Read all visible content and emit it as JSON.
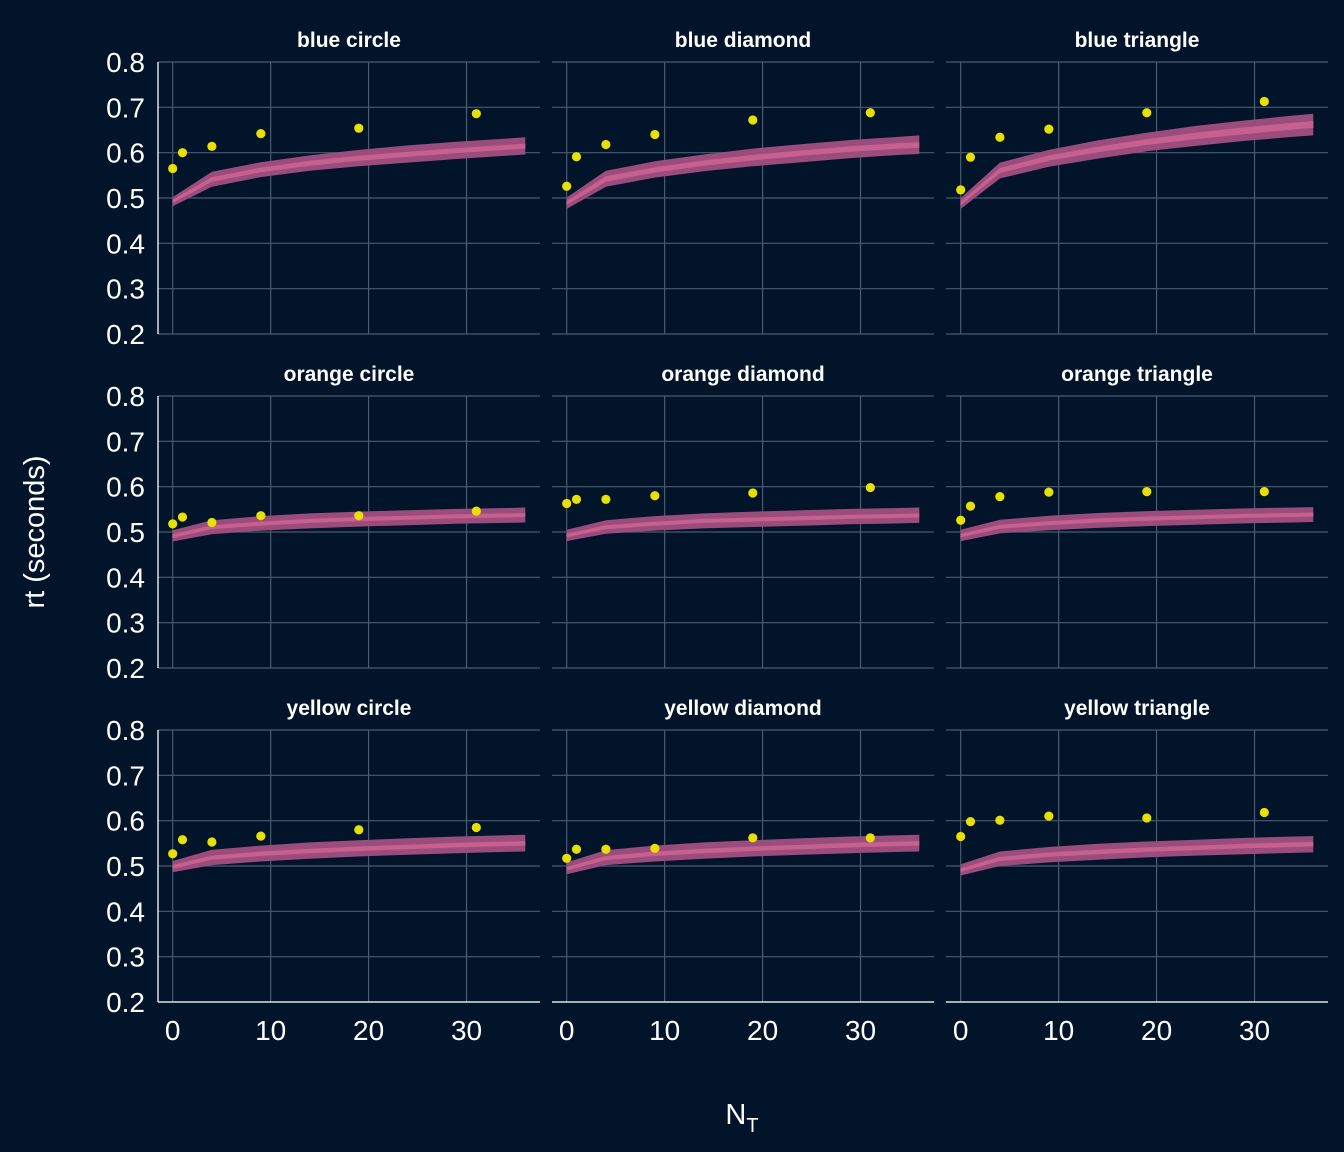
{
  "colors": {
    "background": "#01142a",
    "grid": "#4a5b72",
    "text": "#ffffff",
    "ribbon_outer": "#9a4c7c",
    "ribbon_inner": "#c8608f",
    "point": "#e8e000"
  },
  "chart_data": {
    "type": "scatter",
    "xlabel": "N",
    "xlabel_subscript": "T",
    "ylabel": "rt (seconds)",
    "ylim": [
      0.2,
      0.8
    ],
    "xlim": [
      -1.5,
      37.5
    ],
    "y_ticks": [
      "0.2",
      "0.3",
      "0.4",
      "0.5",
      "0.6",
      "0.7",
      "0.8"
    ],
    "x_ticks": [
      "0",
      "10",
      "20",
      "30"
    ],
    "grid": true,
    "layers": [
      "model prediction ribbon (outer band, inner band)",
      "observed mean rt points"
    ],
    "ribbon_x": [
      0,
      4,
      9,
      14,
      19,
      24,
      29,
      34,
      36
    ],
    "point_x": [
      0,
      1,
      4,
      9,
      19,
      31
    ],
    "facets": [
      {
        "title": "blue circle",
        "points": [
          0.565,
          0.6,
          0.614,
          0.642,
          0.654,
          0.686
        ],
        "ribbon_outer_lo": [
          0.482,
          0.525,
          0.546,
          0.56,
          0.57,
          0.578,
          0.586,
          0.593,
          0.596
        ],
        "ribbon_outer_hi": [
          0.502,
          0.558,
          0.579,
          0.594,
          0.606,
          0.616,
          0.624,
          0.631,
          0.634
        ],
        "ribbon_inner_lo": [
          0.489,
          0.536,
          0.557,
          0.571,
          0.582,
          0.591,
          0.599,
          0.606,
          0.609
        ],
        "ribbon_inner_hi": [
          0.496,
          0.546,
          0.567,
          0.582,
          0.593,
          0.602,
          0.61,
          0.617,
          0.62
        ]
      },
      {
        "title": "blue diamond",
        "points": [
          0.526,
          0.591,
          0.618,
          0.64,
          0.672,
          0.688
        ],
        "ribbon_outer_lo": [
          0.476,
          0.525,
          0.545,
          0.559,
          0.57,
          0.579,
          0.588,
          0.595,
          0.597
        ],
        "ribbon_outer_hi": [
          0.501,
          0.56,
          0.581,
          0.596,
          0.609,
          0.619,
          0.628,
          0.635,
          0.638
        ],
        "ribbon_inner_lo": [
          0.485,
          0.536,
          0.556,
          0.571,
          0.583,
          0.593,
          0.602,
          0.609,
          0.611
        ],
        "ribbon_inner_hi": [
          0.493,
          0.548,
          0.568,
          0.583,
          0.595,
          0.605,
          0.614,
          0.621,
          0.623
        ]
      },
      {
        "title": "blue triangle",
        "points": [
          0.518,
          0.59,
          0.634,
          0.652,
          0.688,
          0.713
        ],
        "ribbon_outer_lo": [
          0.476,
          0.543,
          0.569,
          0.587,
          0.603,
          0.615,
          0.626,
          0.635,
          0.638
        ],
        "ribbon_outer_hi": [
          0.5,
          0.578,
          0.606,
          0.627,
          0.644,
          0.659,
          0.671,
          0.682,
          0.686
        ],
        "ribbon_inner_lo": [
          0.484,
          0.555,
          0.582,
          0.601,
          0.617,
          0.63,
          0.641,
          0.651,
          0.655
        ],
        "ribbon_inner_hi": [
          0.492,
          0.566,
          0.594,
          0.613,
          0.63,
          0.644,
          0.656,
          0.666,
          0.67
        ]
      },
      {
        "title": "orange circle",
        "points": [
          0.518,
          0.533,
          0.521,
          0.536,
          0.536,
          0.546
        ],
        "ribbon_outer_lo": [
          0.479,
          0.495,
          0.503,
          0.508,
          0.512,
          0.515,
          0.518,
          0.52,
          0.521
        ],
        "ribbon_outer_hi": [
          0.504,
          0.526,
          0.535,
          0.541,
          0.545,
          0.548,
          0.551,
          0.553,
          0.554
        ],
        "ribbon_inner_lo": [
          0.487,
          0.506,
          0.514,
          0.52,
          0.524,
          0.527,
          0.53,
          0.532,
          0.533
        ],
        "ribbon_inner_hi": [
          0.495,
          0.515,
          0.523,
          0.529,
          0.533,
          0.536,
          0.539,
          0.541,
          0.542
        ]
      },
      {
        "title": "orange diamond",
        "points": [
          0.563,
          0.572,
          0.572,
          0.58,
          0.586,
          0.598
        ],
        "ribbon_outer_lo": [
          0.48,
          0.496,
          0.503,
          0.508,
          0.511,
          0.514,
          0.517,
          0.519,
          0.52
        ],
        "ribbon_outer_hi": [
          0.505,
          0.526,
          0.535,
          0.541,
          0.545,
          0.548,
          0.551,
          0.553,
          0.554
        ],
        "ribbon_inner_lo": [
          0.488,
          0.506,
          0.514,
          0.52,
          0.523,
          0.526,
          0.529,
          0.531,
          0.532
        ],
        "ribbon_inner_hi": [
          0.496,
          0.515,
          0.523,
          0.529,
          0.532,
          0.535,
          0.538,
          0.54,
          0.541
        ]
      },
      {
        "title": "orange triangle",
        "points": [
          0.526,
          0.557,
          0.578,
          0.588,
          0.589,
          0.589
        ],
        "ribbon_outer_lo": [
          0.48,
          0.497,
          0.504,
          0.509,
          0.513,
          0.516,
          0.519,
          0.521,
          0.522
        ],
        "ribbon_outer_hi": [
          0.505,
          0.527,
          0.536,
          0.542,
          0.546,
          0.549,
          0.552,
          0.554,
          0.555
        ],
        "ribbon_inner_lo": [
          0.488,
          0.507,
          0.515,
          0.521,
          0.525,
          0.528,
          0.531,
          0.533,
          0.534
        ],
        "ribbon_inner_hi": [
          0.496,
          0.516,
          0.524,
          0.53,
          0.534,
          0.537,
          0.54,
          0.542,
          0.543
        ]
      },
      {
        "title": "yellow circle",
        "points": [
          0.527,
          0.558,
          0.553,
          0.566,
          0.58,
          0.585
        ],
        "ribbon_outer_lo": [
          0.486,
          0.502,
          0.51,
          0.516,
          0.521,
          0.525,
          0.528,
          0.531,
          0.532
        ],
        "ribbon_outer_hi": [
          0.511,
          0.536,
          0.545,
          0.552,
          0.557,
          0.561,
          0.565,
          0.568,
          0.569
        ],
        "ribbon_inner_lo": [
          0.494,
          0.514,
          0.522,
          0.528,
          0.533,
          0.537,
          0.541,
          0.544,
          0.545
        ],
        "ribbon_inner_hi": [
          0.502,
          0.523,
          0.532,
          0.538,
          0.543,
          0.547,
          0.551,
          0.554,
          0.555
        ]
      },
      {
        "title": "yellow diamond",
        "points": [
          0.517,
          0.537,
          0.537,
          0.539,
          0.562,
          0.562
        ],
        "ribbon_outer_lo": [
          0.482,
          0.502,
          0.51,
          0.516,
          0.521,
          0.525,
          0.528,
          0.531,
          0.532
        ],
        "ribbon_outer_hi": [
          0.508,
          0.535,
          0.545,
          0.552,
          0.557,
          0.561,
          0.565,
          0.568,
          0.569
        ],
        "ribbon_inner_lo": [
          0.49,
          0.513,
          0.522,
          0.528,
          0.533,
          0.537,
          0.541,
          0.544,
          0.545
        ],
        "ribbon_inner_hi": [
          0.498,
          0.522,
          0.532,
          0.538,
          0.543,
          0.547,
          0.551,
          0.554,
          0.555
        ]
      },
      {
        "title": "yellow triangle",
        "points": [
          0.565,
          0.598,
          0.601,
          0.61,
          0.606,
          0.618
        ],
        "ribbon_outer_lo": [
          0.479,
          0.5,
          0.508,
          0.514,
          0.519,
          0.523,
          0.526,
          0.529,
          0.53
        ],
        "ribbon_outer_hi": [
          0.504,
          0.532,
          0.542,
          0.549,
          0.554,
          0.558,
          0.562,
          0.565,
          0.566
        ],
        "ribbon_inner_lo": [
          0.487,
          0.511,
          0.52,
          0.526,
          0.531,
          0.535,
          0.539,
          0.542,
          0.543
        ],
        "ribbon_inner_hi": [
          0.495,
          0.52,
          0.53,
          0.536,
          0.541,
          0.545,
          0.549,
          0.552,
          0.553
        ]
      }
    ]
  }
}
